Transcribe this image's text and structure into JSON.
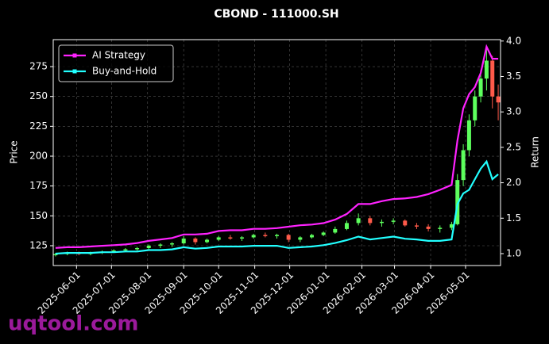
{
  "chart_data": {
    "type": "candlestick",
    "title": "CBOND - 111000.SH",
    "ylabel": "Price",
    "y2label": "Return",
    "watermark": "uqtool.com",
    "x": [
      "2025-05-14",
      "2025-05-24",
      "2025-06-03",
      "2025-06-13",
      "2025-06-23",
      "2025-07-03",
      "2025-07-13",
      "2025-07-23",
      "2025-08-02",
      "2025-08-12",
      "2025-08-22",
      "2025-09-01",
      "2025-09-11",
      "2025-09-21",
      "2025-10-01",
      "2025-10-11",
      "2025-10-21",
      "2025-10-31",
      "2025-11-10",
      "2025-11-20",
      "2025-11-30",
      "2025-12-10",
      "2025-12-20",
      "2025-12-30",
      "2026-01-09",
      "2026-01-19",
      "2026-01-29",
      "2026-02-08",
      "2026-02-18",
      "2026-02-28",
      "2026-03-10",
      "2026-03-20",
      "2026-03-30",
      "2026-04-09",
      "2026-04-19",
      "2026-04-24",
      "2026-04-29",
      "2026-05-04",
      "2026-05-09",
      "2026-05-14",
      "2026-05-19",
      "2026-05-24",
      "2026-05-29"
    ],
    "open": [
      117,
      118,
      119,
      118,
      119,
      120,
      121,
      122,
      123,
      125,
      126,
      127,
      131,
      128,
      130,
      132,
      131,
      132,
      134,
      133,
      134,
      130,
      132,
      134,
      136,
      139,
      144,
      148,
      144,
      145,
      146,
      142,
      141,
      139,
      140,
      143,
      180,
      205,
      230,
      250,
      265,
      280,
      250
    ],
    "high": [
      119,
      120,
      120,
      120,
      121,
      122,
      123,
      124,
      126,
      127,
      128,
      133,
      132,
      131,
      133,
      134,
      133,
      135,
      136,
      135,
      135,
      133,
      135,
      137,
      141,
      146,
      152,
      150,
      147,
      148,
      147,
      144,
      143,
      142,
      145,
      185,
      210,
      235,
      255,
      272,
      290,
      284,
      260
    ],
    "low": [
      116,
      117,
      117,
      117,
      118,
      119,
      120,
      121,
      122,
      123,
      124,
      126,
      126,
      127,
      129,
      130,
      129,
      131,
      132,
      131,
      128,
      128,
      131,
      133,
      135,
      138,
      142,
      142,
      141,
      143,
      141,
      139,
      137,
      136,
      138,
      142,
      175,
      200,
      225,
      245,
      255,
      240,
      230
    ],
    "close": [
      118,
      119,
      118,
      119,
      120,
      121,
      122,
      123,
      125,
      126,
      127,
      131,
      128,
      130,
      132,
      131,
      132,
      134,
      133,
      134,
      130,
      132,
      134,
      136,
      139,
      144,
      148,
      144,
      145,
      146,
      142,
      141,
      139,
      140,
      143,
      180,
      205,
      230,
      250,
      265,
      280,
      250,
      245
    ],
    "up_color": "#5dff5d",
    "down_color": "#ff5a4a",
    "series": [
      {
        "name": "AI Strategy",
        "color": "#ff22ff",
        "axis": "y2",
        "values": [
          1.08,
          1.09,
          1.09,
          1.1,
          1.11,
          1.12,
          1.13,
          1.15,
          1.18,
          1.2,
          1.22,
          1.27,
          1.27,
          1.28,
          1.32,
          1.33,
          1.33,
          1.35,
          1.35,
          1.36,
          1.38,
          1.4,
          1.41,
          1.43,
          1.48,
          1.56,
          1.7,
          1.7,
          1.74,
          1.77,
          1.78,
          1.8,
          1.84,
          1.9,
          1.97,
          2.6,
          3.05,
          3.25,
          3.35,
          3.55,
          3.92,
          3.75,
          3.75
        ]
      },
      {
        "name": "Buy-and-Hold",
        "color": "#22ffff",
        "axis": "y2",
        "values": [
          1.0,
          1.01,
          1.01,
          1.01,
          1.02,
          1.02,
          1.03,
          1.03,
          1.05,
          1.05,
          1.06,
          1.09,
          1.07,
          1.08,
          1.1,
          1.1,
          1.1,
          1.11,
          1.11,
          1.11,
          1.08,
          1.09,
          1.1,
          1.12,
          1.15,
          1.19,
          1.24,
          1.2,
          1.22,
          1.24,
          1.21,
          1.2,
          1.18,
          1.18,
          1.2,
          1.7,
          1.85,
          1.9,
          2.05,
          2.2,
          2.3,
          2.05,
          2.12
        ]
      }
    ],
    "xlim": [
      "2025-05-12",
      "2026-05-31"
    ],
    "xticks": [
      "2025-06-01",
      "2025-07-01",
      "2025-08-01",
      "2025-09-01",
      "2025-10-01",
      "2025-11-01",
      "2025-12-01",
      "2026-01-01",
      "2026-02-01",
      "2026-03-01",
      "2026-04-01",
      "2026-05-01"
    ],
    "ylim": [
      108.4,
      297.6
    ],
    "yticks": [
      125,
      150,
      175,
      200,
      225,
      250,
      275
    ],
    "y2lim": [
      0.832,
      4.02
    ],
    "y2ticks": [
      {
        "value": 1,
        "label": "1.0"
      },
      1.5,
      {
        "value": 2,
        "label": "2.0"
      },
      2.5,
      {
        "value": 3,
        "label": "3.0"
      },
      3.5,
      {
        "value": 4,
        "label": "4.0"
      }
    ],
    "grid": true,
    "legend": "upper left"
  }
}
